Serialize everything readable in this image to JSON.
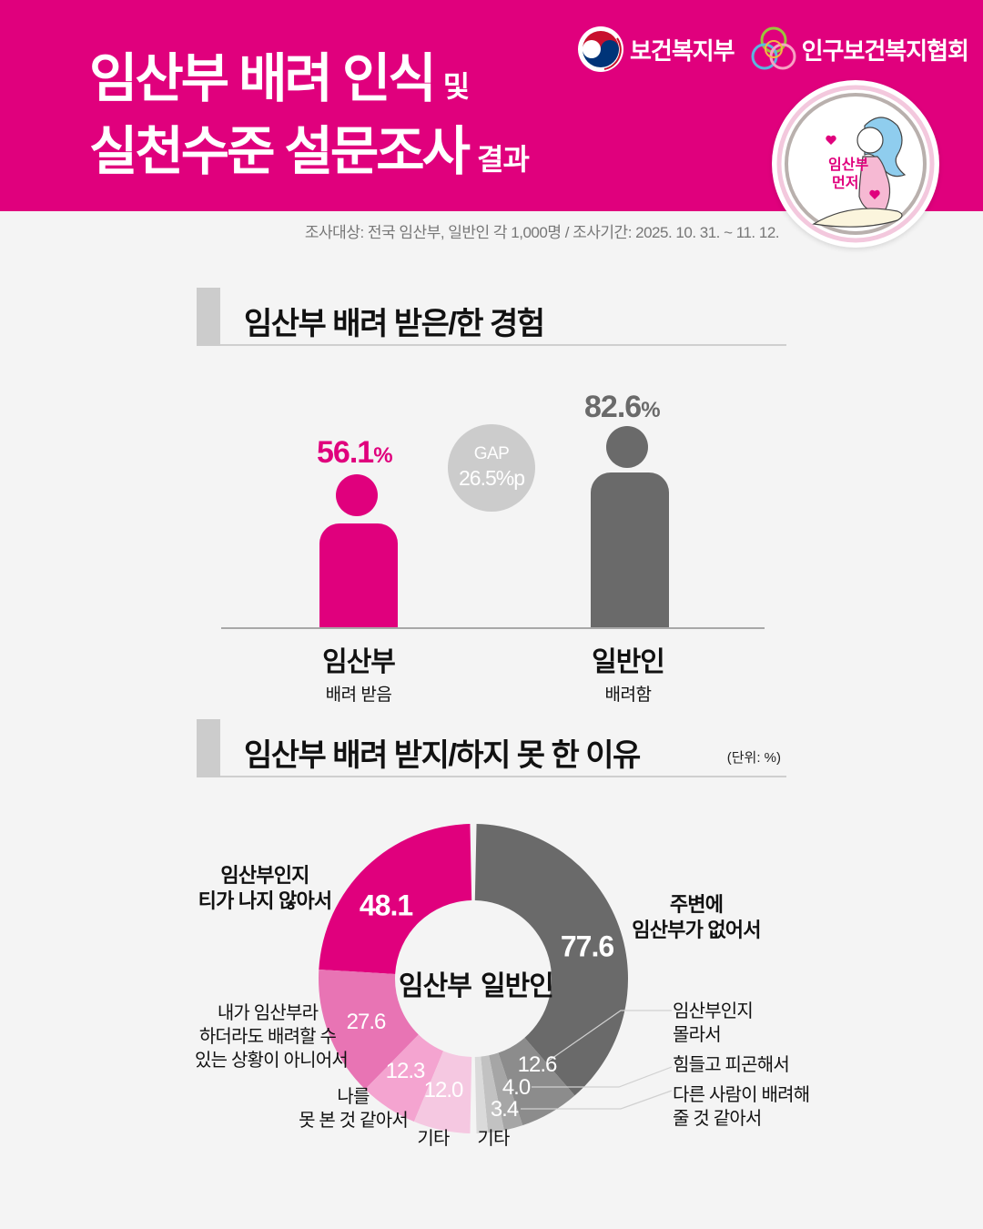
{
  "header": {
    "title_line1": "임산부 배려 인식",
    "title_line1_suffix": "및",
    "title_line2": "실천수준 설문조사",
    "title_line2_suffix": "결과",
    "logo_ministry": "보건복지부",
    "logo_association": "인구보건복지협회",
    "badge_text_line1": "임산부",
    "badge_text_line2": "먼저",
    "bg_color": "#e0007d"
  },
  "subtitle": "조사대상: 전국 임산부, 일반인 각 1,000명 / 조사기간: 2025. 10. 31. ~ 11. 12.",
  "section1": {
    "title": "임산부 배려 받은/한 경험",
    "gap_label": "GAP",
    "gap_value": "26.5%p",
    "groups": [
      {
        "name": "임산부",
        "sub": "배려 받음",
        "value": "56.1",
        "unit": "%",
        "color": "#e0007d"
      },
      {
        "name": "일반인",
        "sub": "배려함",
        "value": "82.6",
        "unit": "%",
        "color": "#6a6a6a"
      }
    ]
  },
  "section2": {
    "title": "임산부 배려 받지/하지 못 한 이유",
    "unit": "(단위: %)",
    "center_left": "임산부",
    "center_right": "일반인"
  },
  "chart_data": [
    {
      "type": "bar",
      "title": "임산부 배려 받은/한 경험",
      "categories": [
        "임산부 (배려 받음)",
        "일반인 (배려함)"
      ],
      "values": [
        56.1,
        82.6
      ],
      "unit": "%",
      "annotation": "GAP 26.5%p",
      "colors": [
        "#e0007d",
        "#6a6a6a"
      ]
    },
    {
      "type": "pie",
      "subtype": "split-donut",
      "title": "임산부 배려 받지/하지 못 한 이유",
      "unit": "%",
      "series": [
        {
          "name": "임산부",
          "labels": [
            "임산부인지 티가 나지 않아서",
            "내가 임산부라 하더라도 배려할 수 있는 상황이 아니어서",
            "나를 못 본 것 같아서",
            "기타"
          ],
          "values": [
            48.1,
            27.6,
            12.3,
            12.0
          ],
          "colors": [
            "#e0007d",
            "#e874b4",
            "#f4a4d0",
            "#f5c8e1"
          ]
        },
        {
          "name": "일반인",
          "labels": [
            "주변에 임산부가 없어서",
            "임산부인지 몰라서",
            "힘들고 피곤해서",
            "다른 사람이 배려해 줄 것 같아서",
            "기타"
          ],
          "values": [
            77.6,
            12.6,
            4.0,
            3.4,
            2.4
          ],
          "colors": [
            "#6a6a6a",
            "#8c8c8c",
            "#a6a6a6",
            "#c2c2c2",
            "#dadada"
          ]
        }
      ]
    }
  ],
  "donut_labels": {
    "p0": "임산부인지\n티가 나지 않아서",
    "p1": "내가 임산부라\n하더라도 배려할 수\n있는 상황이 아니어서",
    "p2": "나를\n못 본 것 같아서",
    "p3": "기타",
    "g0": "주변에\n임산부가 없어서",
    "g1": "임산부인지\n몰라서",
    "g2": "힘들고 피곤해서",
    "g3": "다른 사람이 배려해\n줄 것 같아서",
    "g4": "기타",
    "v_p0": "48.1",
    "v_p1": "27.6",
    "v_p2": "12.3",
    "v_p3": "12.0",
    "v_g0": "77.6",
    "v_g1": "12.6",
    "v_g2": "4.0",
    "v_g3": "3.4"
  }
}
